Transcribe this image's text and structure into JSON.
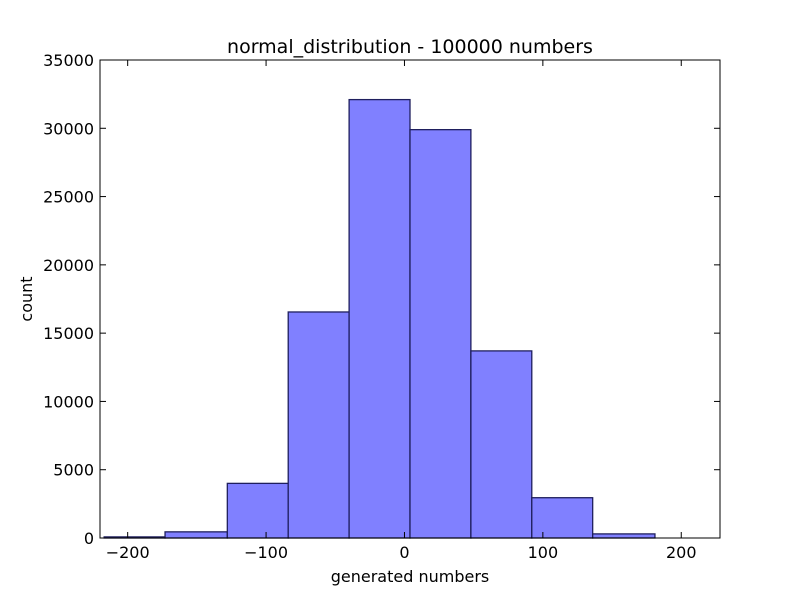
{
  "chart_data": {
    "type": "bar",
    "title": "normal_distribution - 100000 numbers",
    "xlabel": "generated numbers",
    "ylabel": "count",
    "xlim": [
      -220,
      228
    ],
    "ylim": [
      0,
      35000
    ],
    "x_ticks": [
      -200,
      -100,
      0,
      100,
      200
    ],
    "x_tick_labels": [
      "−200",
      "−100",
      "0",
      "100",
      "200"
    ],
    "y_ticks": [
      0,
      5000,
      10000,
      15000,
      20000,
      25000,
      30000,
      35000
    ],
    "y_tick_labels": [
      "0",
      "5000",
      "10000",
      "15000",
      "20000",
      "25000",
      "30000",
      "35000"
    ],
    "bin_edges": [
      -217,
      -173,
      -128,
      -84,
      -40,
      4,
      48,
      92,
      136,
      181
    ],
    "values": [
      80,
      450,
      4000,
      16550,
      32100,
      29900,
      13700,
      2950,
      300
    ],
    "grid": false,
    "bar_color": "#8080ff",
    "bar_edge_color": "#1f1f5e"
  }
}
